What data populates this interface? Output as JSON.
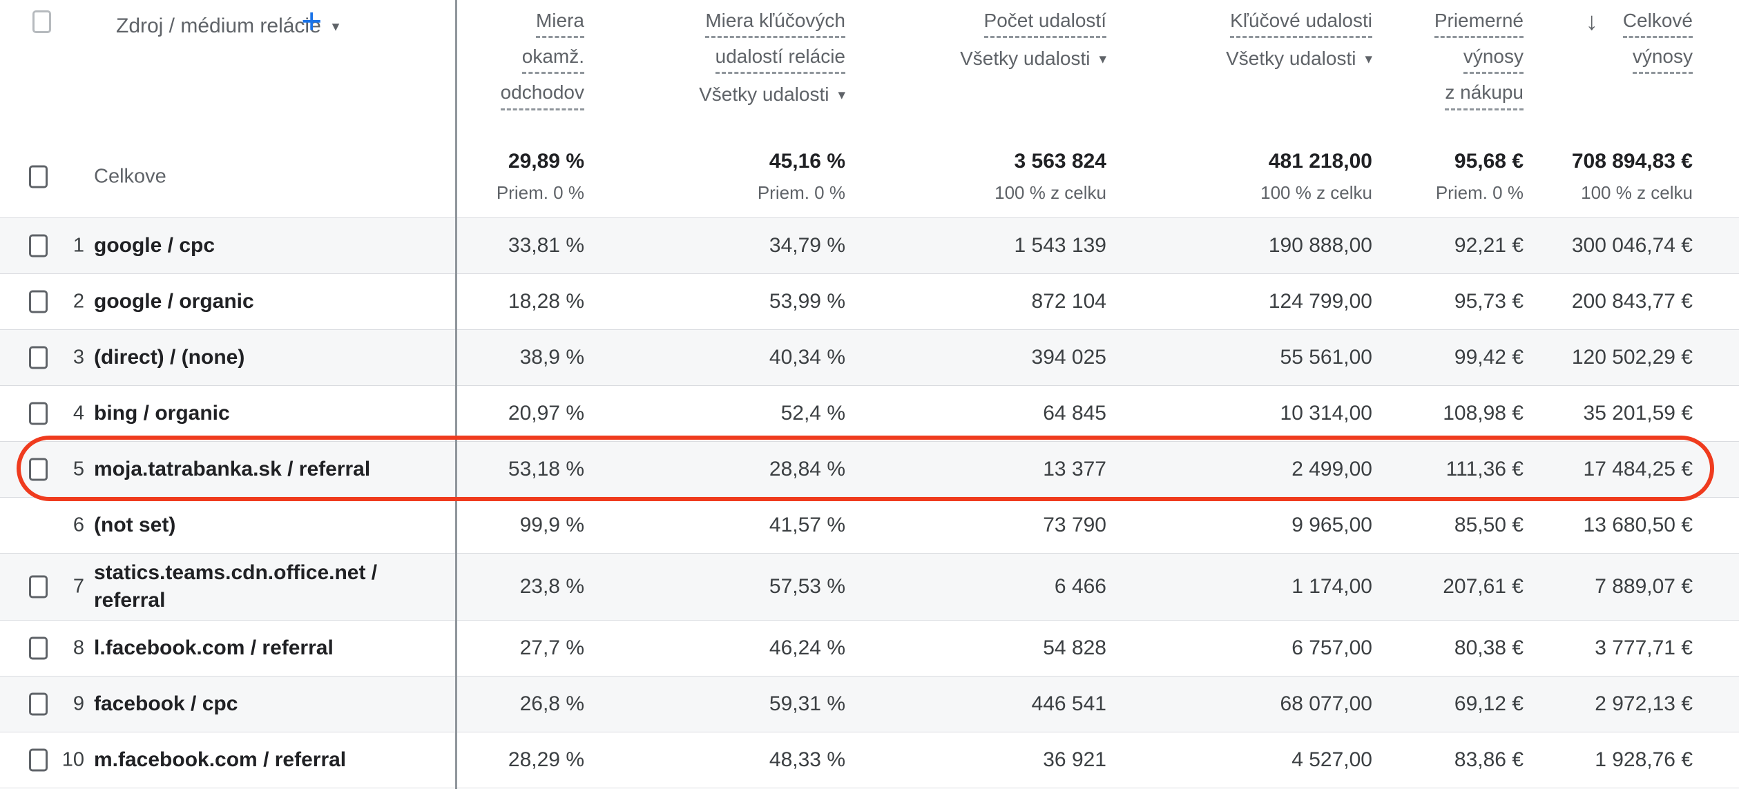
{
  "header": {
    "dimension_label": "Zdroj / médium relácie",
    "add_button_label": "+",
    "columns": [
      {
        "id": "bounce-rate",
        "lines": [
          "Miera",
          "okamž.",
          "odchodov"
        ],
        "filter": null
      },
      {
        "id": "session-key-event-rate",
        "lines": [
          "Miera kľúčových",
          "udalostí relácie"
        ],
        "filter": "Všetky udalosti"
      },
      {
        "id": "event-count",
        "lines": [
          "Počet udalostí"
        ],
        "filter": "Všetky udalosti"
      },
      {
        "id": "key-events",
        "lines": [
          "Kľúčové udalosti"
        ],
        "filter": "Všetky udalosti"
      },
      {
        "id": "avg-purchase-revenue",
        "lines": [
          "Priemerné",
          "výnosy",
          "z nákupu"
        ],
        "filter": null
      },
      {
        "id": "total-revenue",
        "lines": [
          "Celkové",
          "výnosy"
        ],
        "filter": null,
        "sorted": true,
        "sort_icon": "down-arrow"
      }
    ]
  },
  "totals": {
    "label": "Celkove",
    "metrics": [
      {
        "value": "29,89 %",
        "sub": "Priem. 0 %"
      },
      {
        "value": "45,16 %",
        "sub": "Priem. 0 %"
      },
      {
        "value": "3 563 824",
        "sub": "100 % z celku"
      },
      {
        "value": "481 218,00",
        "sub": "100 % z celku"
      },
      {
        "value": "95,68 €",
        "sub": "Priem. 0 %"
      },
      {
        "value": "708 894,83 €",
        "sub": "100 % z celku"
      }
    ]
  },
  "rows": [
    {
      "num": "1",
      "label": "google / cpc",
      "selectable": true,
      "values": [
        "33,81 %",
        "34,79 %",
        "1 543 139",
        "190 888,00",
        "92,21 €",
        "300 046,74 €"
      ]
    },
    {
      "num": "2",
      "label": "google / organic",
      "selectable": true,
      "values": [
        "18,28 %",
        "53,99 %",
        "872 104",
        "124 799,00",
        "95,73 €",
        "200 843,77 €"
      ]
    },
    {
      "num": "3",
      "label": "(direct) / (none)",
      "selectable": true,
      "values": [
        "38,9 %",
        "40,34 %",
        "394 025",
        "55 561,00",
        "99,42 €",
        "120 502,29 €"
      ]
    },
    {
      "num": "4",
      "label": "bing / organic",
      "selectable": true,
      "values": [
        "20,97 %",
        "52,4 %",
        "64 845",
        "10 314,00",
        "108,98 €",
        "35 201,59 €"
      ]
    },
    {
      "num": "5",
      "label": "moja.tatrabanka.sk / referral",
      "selectable": true,
      "highlighted": true,
      "values": [
        "53,18 %",
        "28,84 %",
        "13 377",
        "2 499,00",
        "111,36 €",
        "17 484,25 €"
      ]
    },
    {
      "num": "6",
      "label": "(not set)",
      "selectable": false,
      "values": [
        "99,9 %",
        "41,57 %",
        "73 790",
        "9 965,00",
        "85,50 €",
        "13 680,50 €"
      ]
    },
    {
      "num": "7",
      "label": "statics.teams.cdn.office.net / referral",
      "selectable": true,
      "values": [
        "23,8 %",
        "57,53 %",
        "6 466",
        "1 174,00",
        "207,61 €",
        "7 889,07 €"
      ]
    },
    {
      "num": "8",
      "label": "l.facebook.com / referral",
      "selectable": true,
      "values": [
        "27,7 %",
        "46,24 %",
        "54 828",
        "6 757,00",
        "80,38 €",
        "3 777,71 €"
      ]
    },
    {
      "num": "9",
      "label": "facebook / cpc",
      "selectable": true,
      "values": [
        "26,8 %",
        "59,31 %",
        "446 541",
        "68 077,00",
        "69,12 €",
        "2 972,13 €"
      ]
    },
    {
      "num": "10",
      "label": "m.facebook.com / referral",
      "selectable": true,
      "values": [
        "28,29 %",
        "48,33 %",
        "36 921",
        "4 527,00",
        "83,86 €",
        "1 928,76 €"
      ]
    }
  ],
  "annotation": {
    "shape": "rounded-rect",
    "target_row": "5"
  },
  "colors": {
    "accent_blue": "#1a73e8",
    "annotation_red": "#ef3b1e"
  }
}
